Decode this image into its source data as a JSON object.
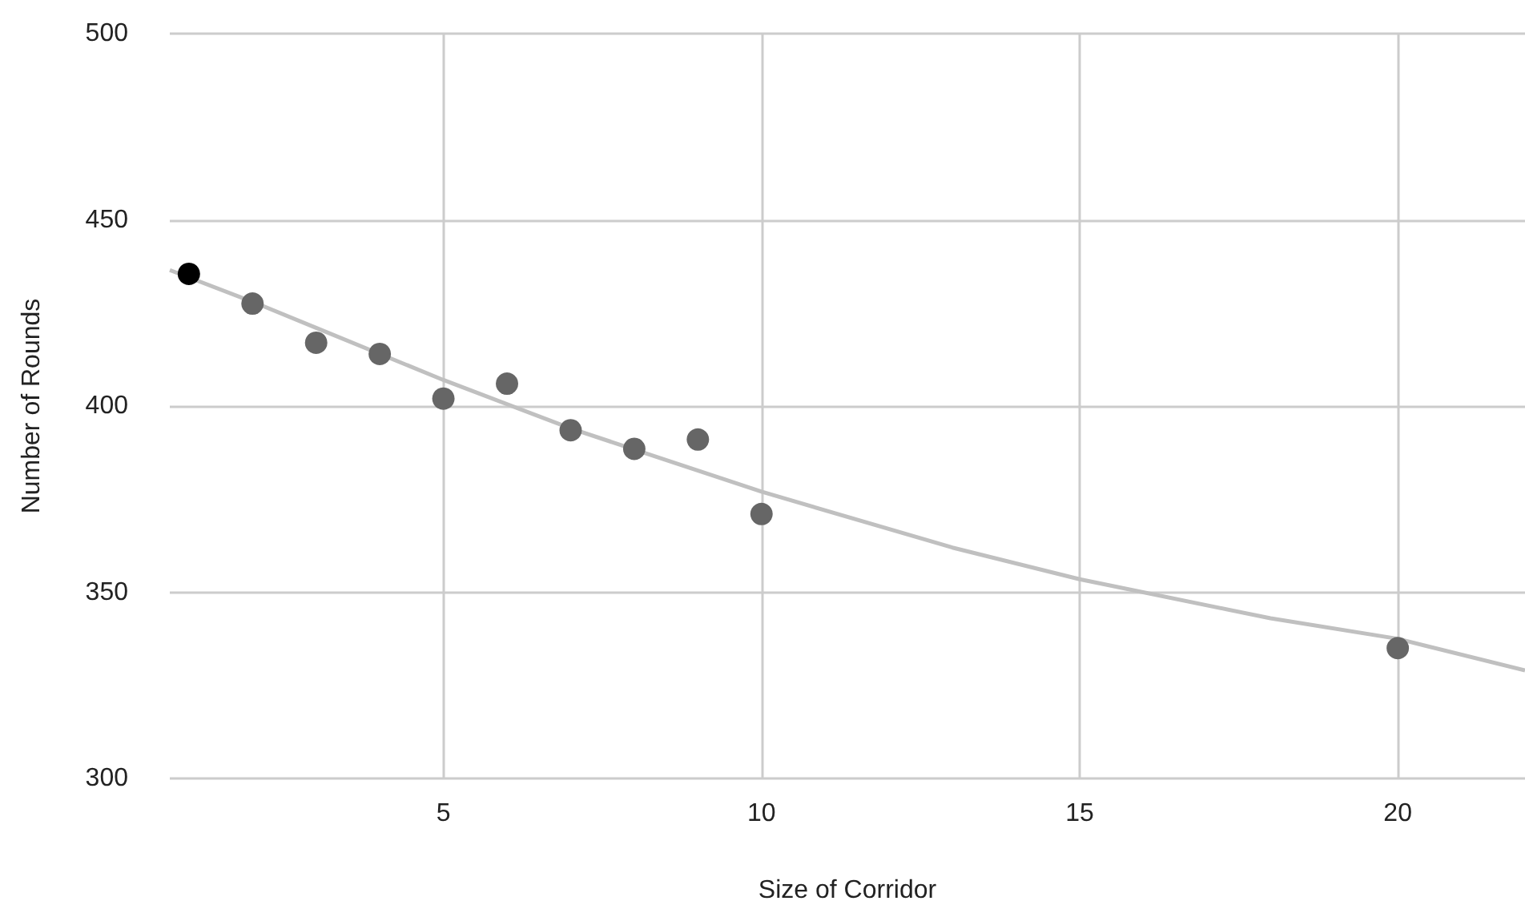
{
  "chart_data": {
    "type": "scatter",
    "xlabel": "Size of Corridor",
    "ylabel": "Number of Rounds",
    "xlim": [
      0.7,
      22
    ],
    "xticks": [
      5,
      10,
      15,
      20
    ],
    "ylim": [
      300,
      500
    ],
    "yticks": [
      300,
      350,
      400,
      450,
      500
    ],
    "grid": true,
    "marker": "circle",
    "series": [
      {
        "x": [
          1,
          2,
          3,
          4,
          5,
          6,
          7,
          8,
          9,
          10,
          20
        ],
        "values": [
          435.5,
          427.5,
          417,
          414,
          402,
          406,
          393.5,
          388.5,
          391,
          371,
          335
        ],
        "colors": [
          "#000000",
          "#666666",
          "#666666",
          "#666666",
          "#666666",
          "#666666",
          "#666666",
          "#666666",
          "#666666",
          "#666666",
          "#666666"
        ]
      },
      {
        "type": "line",
        "marker": "none",
        "color": "#c0c0c0",
        "x": [
          0.7,
          2,
          3,
          5,
          7,
          10,
          13,
          15,
          18,
          20,
          22
        ],
        "values": [
          436.5,
          428,
          421,
          407,
          394,
          377,
          362,
          353.5,
          343,
          337.5,
          329
        ]
      }
    ]
  }
}
